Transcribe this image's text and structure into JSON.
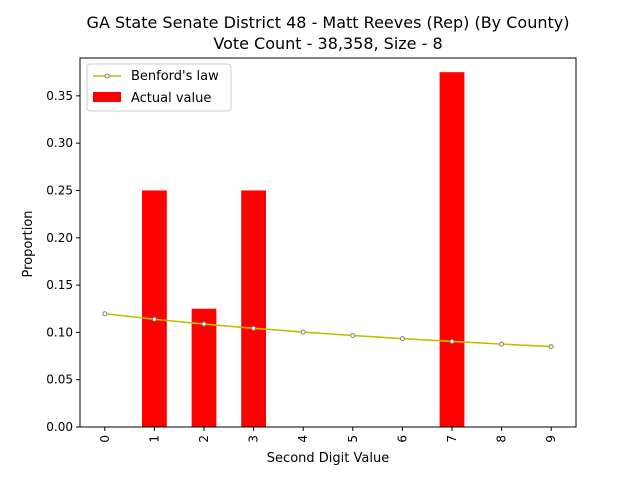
{
  "chart_data": {
    "type": "bar",
    "title_line1": "GA State Senate District 48 - Matt Reeves (Rep) (By County)",
    "title_line2": "Vote Count - 38,358, Size - 8",
    "xlabel": "Second Digit Value",
    "ylabel": "Proportion",
    "categories": [
      "0",
      "1",
      "2",
      "3",
      "4",
      "5",
      "6",
      "7",
      "8",
      "9"
    ],
    "ylim": [
      0,
      0.39
    ],
    "yticks": [
      0.0,
      0.05,
      0.1,
      0.15,
      0.2,
      0.25,
      0.3,
      0.35
    ],
    "ytick_labels": [
      "0.00",
      "0.05",
      "0.10",
      "0.15",
      "0.20",
      "0.25",
      "0.30",
      "0.35"
    ],
    "series": [
      {
        "name": "Actual value",
        "kind": "bar",
        "color": "#ff0000",
        "values": [
          0.0,
          0.25,
          0.125,
          0.25,
          0.0,
          0.0,
          0.0,
          0.375,
          0.0,
          0.0
        ]
      },
      {
        "name": "Benford's law",
        "kind": "line",
        "color": "#bfbf00",
        "values": [
          0.1197,
          0.1139,
          0.1088,
          0.1043,
          0.1003,
          0.0967,
          0.0934,
          0.0904,
          0.0876,
          0.085
        ]
      }
    ],
    "legend": {
      "placement": "top-left",
      "entries": [
        "Benford's law",
        "Actual value"
      ]
    },
    "grid": false
  }
}
